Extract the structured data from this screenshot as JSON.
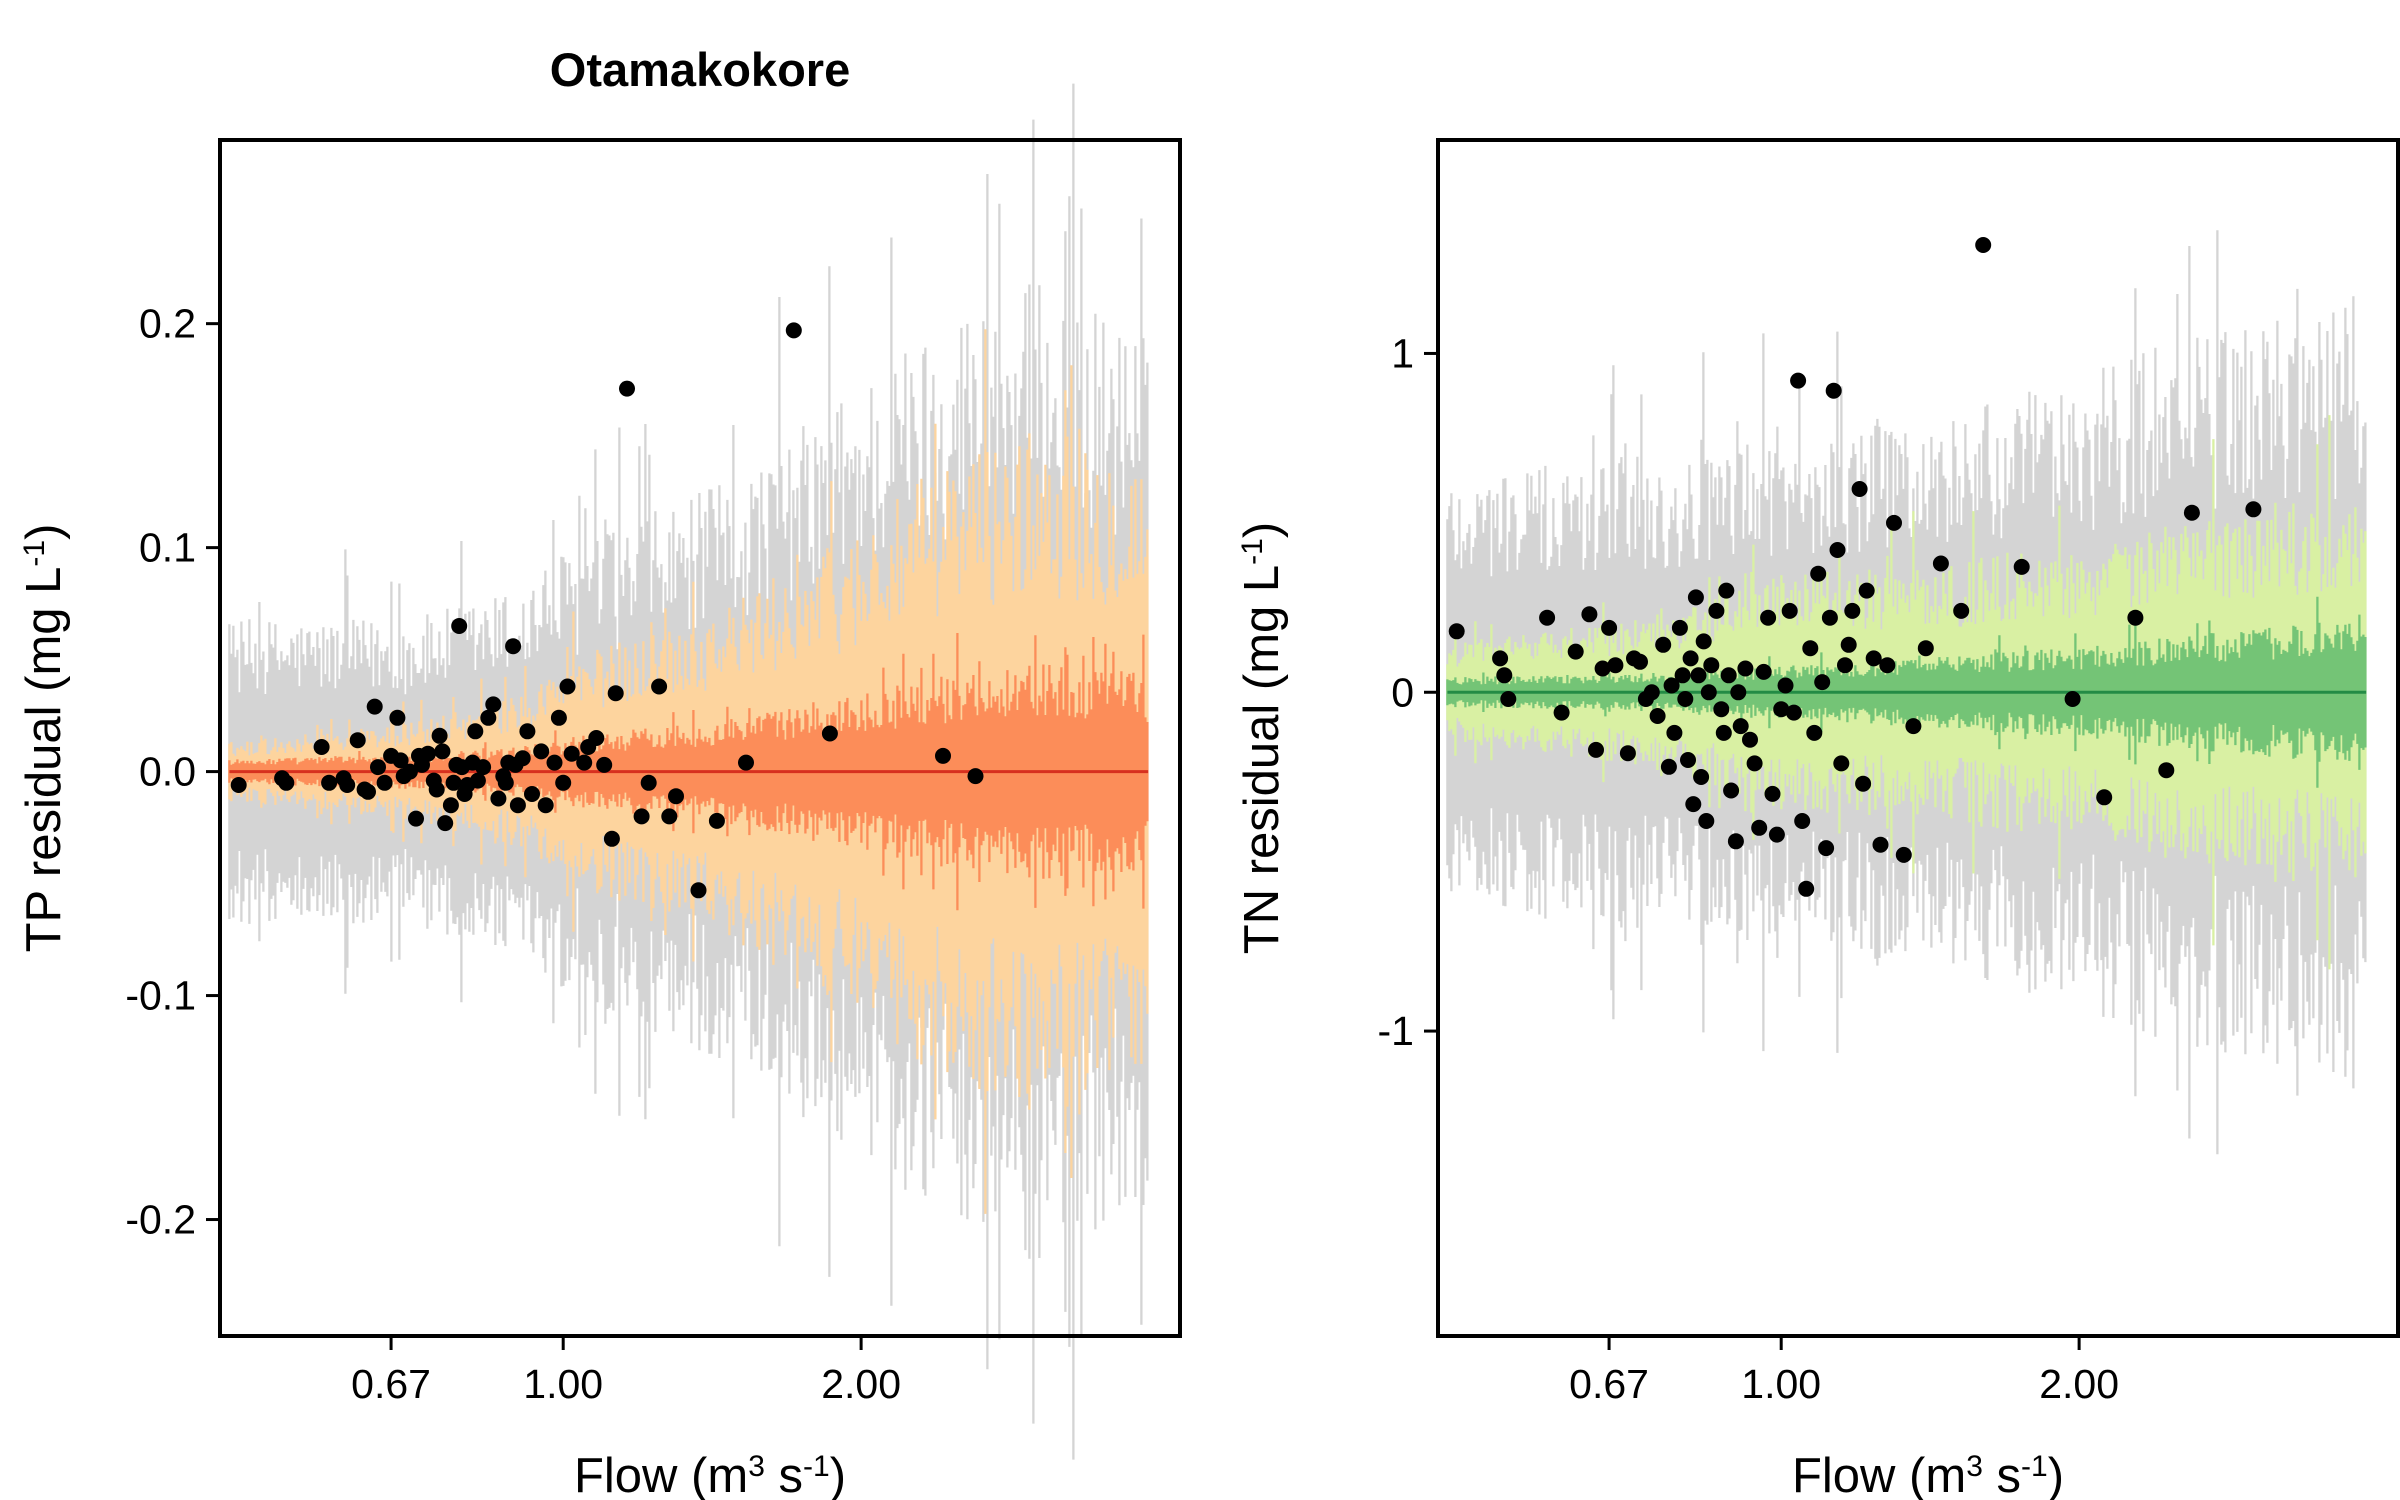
{
  "figure": {
    "title": "Otamakokore"
  },
  "chart_data": [
    {
      "type": "scatter",
      "title": "Otamakokore",
      "xlabel": "Flow (m3 s-1)",
      "ylabel": "TP residual (mg L-1)",
      "xscale": "log",
      "xlim": [
        0.45,
        4.2
      ],
      "ylim": [
        -0.252,
        0.282
      ],
      "xticks": [
        0.67,
        1.0,
        2.0
      ],
      "xtick_labels": [
        "0.67",
        "1.00",
        "2.00"
      ],
      "yticks": [
        -0.2,
        -0.1,
        0.0,
        0.1,
        0.2
      ],
      "ytick_labels": [
        "-0.2",
        "-0.1",
        "0.0",
        "0.1",
        "0.2"
      ],
      "grid": false,
      "colors": {
        "outer_band": "#d4d4d4",
        "middle_band": "#fdd49e",
        "inner_band": "#fc8d59",
        "fit_line": "#d7301f",
        "points": "#000000"
      },
      "bands": {
        "x_range": [
          0.46,
          3.9
        ],
        "outer": {
          "x": [
            0.46,
            0.7,
            0.9,
            1.0,
            1.5,
            2.0,
            2.5,
            3.0,
            3.9
          ],
          "half_width": [
            0.062,
            0.062,
            0.075,
            0.09,
            0.12,
            0.16,
            0.19,
            0.2,
            0.18
          ]
        },
        "middle": {
          "x": [
            0.46,
            0.7,
            0.9,
            1.0,
            1.5,
            2.0,
            2.5,
            3.0,
            3.9
          ],
          "half_width": [
            0.012,
            0.02,
            0.03,
            0.045,
            0.07,
            0.1,
            0.13,
            0.14,
            0.13
          ]
        },
        "inner": {
          "x": [
            0.46,
            0.7,
            0.9,
            1.0,
            1.5,
            2.0,
            2.5,
            3.0,
            3.9
          ],
          "half_width": [
            0.005,
            0.007,
            0.01,
            0.014,
            0.022,
            0.032,
            0.04,
            0.045,
            0.04
          ]
        }
      },
      "fit_line": {
        "x": [
          0.46,
          3.9
        ],
        "y": [
          0.0,
          0.0
        ]
      },
      "points": {
        "x": [
          0.47,
          0.52,
          0.525,
          0.57,
          0.58,
          0.6,
          0.605,
          0.62,
          0.63,
          0.635,
          0.645,
          0.65,
          0.66,
          0.67,
          0.68,
          0.685,
          0.69,
          0.7,
          0.71,
          0.715,
          0.72,
          0.73,
          0.74,
          0.745,
          0.75,
          0.755,
          0.76,
          0.77,
          0.775,
          0.78,
          0.785,
          0.79,
          0.795,
          0.8,
          0.81,
          0.815,
          0.82,
          0.83,
          0.84,
          0.85,
          0.86,
          0.87,
          0.875,
          0.88,
          0.89,
          0.895,
          0.9,
          0.91,
          0.92,
          0.93,
          0.95,
          0.96,
          0.98,
          0.99,
          1.0,
          1.01,
          1.02,
          1.05,
          1.06,
          1.08,
          1.1,
          1.12,
          1.13,
          1.16,
          1.2,
          1.22,
          1.25,
          1.28,
          1.3,
          1.37,
          1.43,
          1.53,
          1.71,
          1.86,
          2.42,
          2.61
        ],
        "y": [
          -0.006,
          -0.003,
          -0.005,
          0.011,
          -0.005,
          -0.003,
          -0.006,
          0.014,
          -0.008,
          -0.009,
          0.029,
          0.002,
          -0.005,
          0.007,
          0.024,
          0.005,
          -0.002,
          0.0,
          -0.021,
          0.007,
          0.003,
          0.008,
          -0.004,
          -0.008,
          0.016,
          0.009,
          -0.023,
          -0.015,
          -0.005,
          0.003,
          0.065,
          0.002,
          -0.01,
          -0.006,
          0.004,
          0.018,
          -0.004,
          0.002,
          0.024,
          0.03,
          -0.012,
          -0.002,
          -0.005,
          0.004,
          0.056,
          0.003,
          -0.015,
          0.006,
          0.018,
          -0.01,
          0.009,
          -0.015,
          0.004,
          0.024,
          -0.005,
          0.038,
          0.008,
          0.004,
          0.011,
          0.015,
          0.003,
          -0.03,
          0.035,
          0.171,
          -0.02,
          -0.005,
          0.038,
          -0.02,
          -0.011,
          -0.053,
          -0.022,
          0.004,
          0.197,
          0.017,
          0.007,
          -0.002
        ]
      }
    },
    {
      "type": "scatter",
      "title": "",
      "xlabel": "Flow (m3 s-1)",
      "ylabel": "TN residual (mg L-1)",
      "xscale": "log",
      "xlim": [
        0.45,
        4.2
      ],
      "ylim": [
        -1.9,
        1.63
      ],
      "xticks": [
        0.67,
        1.0,
        2.0
      ],
      "xtick_labels": [
        "0.67",
        "1.00",
        "2.00"
      ],
      "yticks": [
        -1,
        0,
        1
      ],
      "ytick_labels": [
        "-1",
        "0",
        "1"
      ],
      "grid": false,
      "colors": {
        "outer_band": "#d4d4d4",
        "middle_band": "#d9f0a3",
        "inner_band": "#74c476",
        "fit_line": "#238b45",
        "points": "#000000"
      },
      "bands": {
        "x_range": [
          0.46,
          3.9
        ],
        "outer": {
          "x": [
            0.46,
            0.7,
            0.9,
            1.0,
            1.5,
            2.0,
            2.5,
            3.0,
            3.9
          ],
          "half_width": [
            0.6,
            0.62,
            0.66,
            0.68,
            0.75,
            0.85,
            0.95,
            1.0,
            1.05
          ]
        },
        "middle": {
          "x": [
            0.46,
            0.7,
            0.9,
            1.0,
            1.5,
            2.0,
            2.5,
            3.0,
            3.9
          ],
          "half_width": [
            0.12,
            0.2,
            0.27,
            0.32,
            0.35,
            0.4,
            0.45,
            0.5,
            0.55
          ]
        },
        "inner": {
          "x": [
            0.46,
            0.7,
            0.9,
            1.0,
            1.5,
            2.0,
            2.5,
            3.0,
            3.9
          ],
          "half_width": [
            0.04,
            0.05,
            0.06,
            0.07,
            0.1,
            0.12,
            0.15,
            0.17,
            0.2
          ]
        }
      },
      "fit_line": {
        "x": [
          0.46,
          3.9
        ],
        "y": [
          0.0,
          0.0
        ]
      },
      "points": {
        "x": [
          0.47,
          0.52,
          0.525,
          0.53,
          0.58,
          0.6,
          0.62,
          0.64,
          0.65,
          0.66,
          0.67,
          0.68,
          0.7,
          0.71,
          0.72,
          0.73,
          0.74,
          0.75,
          0.76,
          0.77,
          0.775,
          0.78,
          0.79,
          0.795,
          0.8,
          0.805,
          0.81,
          0.815,
          0.82,
          0.825,
          0.83,
          0.835,
          0.84,
          0.845,
          0.85,
          0.86,
          0.87,
          0.875,
          0.88,
          0.885,
          0.89,
          0.9,
          0.905,
          0.91,
          0.92,
          0.93,
          0.94,
          0.95,
          0.96,
          0.97,
          0.98,
          0.99,
          1.0,
          1.01,
          1.02,
          1.03,
          1.04,
          1.05,
          1.06,
          1.07,
          1.08,
          1.09,
          1.1,
          1.11,
          1.12,
          1.13,
          1.14,
          1.15,
          1.16,
          1.17,
          1.18,
          1.2,
          1.21,
          1.22,
          1.24,
          1.26,
          1.28,
          1.3,
          1.33,
          1.36,
          1.4,
          1.45,
          1.52,
          1.6,
          1.75,
          1.97,
          2.12,
          2.28,
          2.45,
          2.6,
          3.0
        ],
        "y": [
          0.18,
          0.1,
          0.05,
          -0.02,
          0.22,
          -0.06,
          0.12,
          0.23,
          -0.17,
          0.07,
          0.19,
          0.08,
          -0.18,
          0.1,
          0.09,
          -0.02,
          0.0,
          -0.07,
          0.14,
          -0.22,
          0.02,
          -0.12,
          0.19,
          0.05,
          -0.02,
          -0.2,
          0.1,
          -0.33,
          0.28,
          0.05,
          -0.25,
          0.15,
          -0.38,
          0.0,
          0.08,
          0.24,
          -0.05,
          -0.12,
          0.3,
          0.05,
          -0.29,
          -0.44,
          0.0,
          -0.1,
          0.07,
          -0.14,
          -0.21,
          -0.4,
          0.06,
          0.22,
          -0.3,
          -0.42,
          -0.05,
          0.02,
          0.24,
          -0.06,
          0.92,
          -0.38,
          -0.58,
          0.13,
          -0.12,
          0.35,
          0.03,
          -0.46,
          0.22,
          0.89,
          0.42,
          -0.21,
          0.08,
          0.14,
          0.24,
          0.6,
          -0.27,
          0.3,
          0.1,
          -0.45,
          0.08,
          0.5,
          -0.48,
          -0.1,
          0.13,
          0.38,
          0.24,
          1.32,
          0.37,
          -0.02,
          -0.31,
          0.22,
          -0.23,
          0.53,
          0.54
        ]
      }
    }
  ]
}
